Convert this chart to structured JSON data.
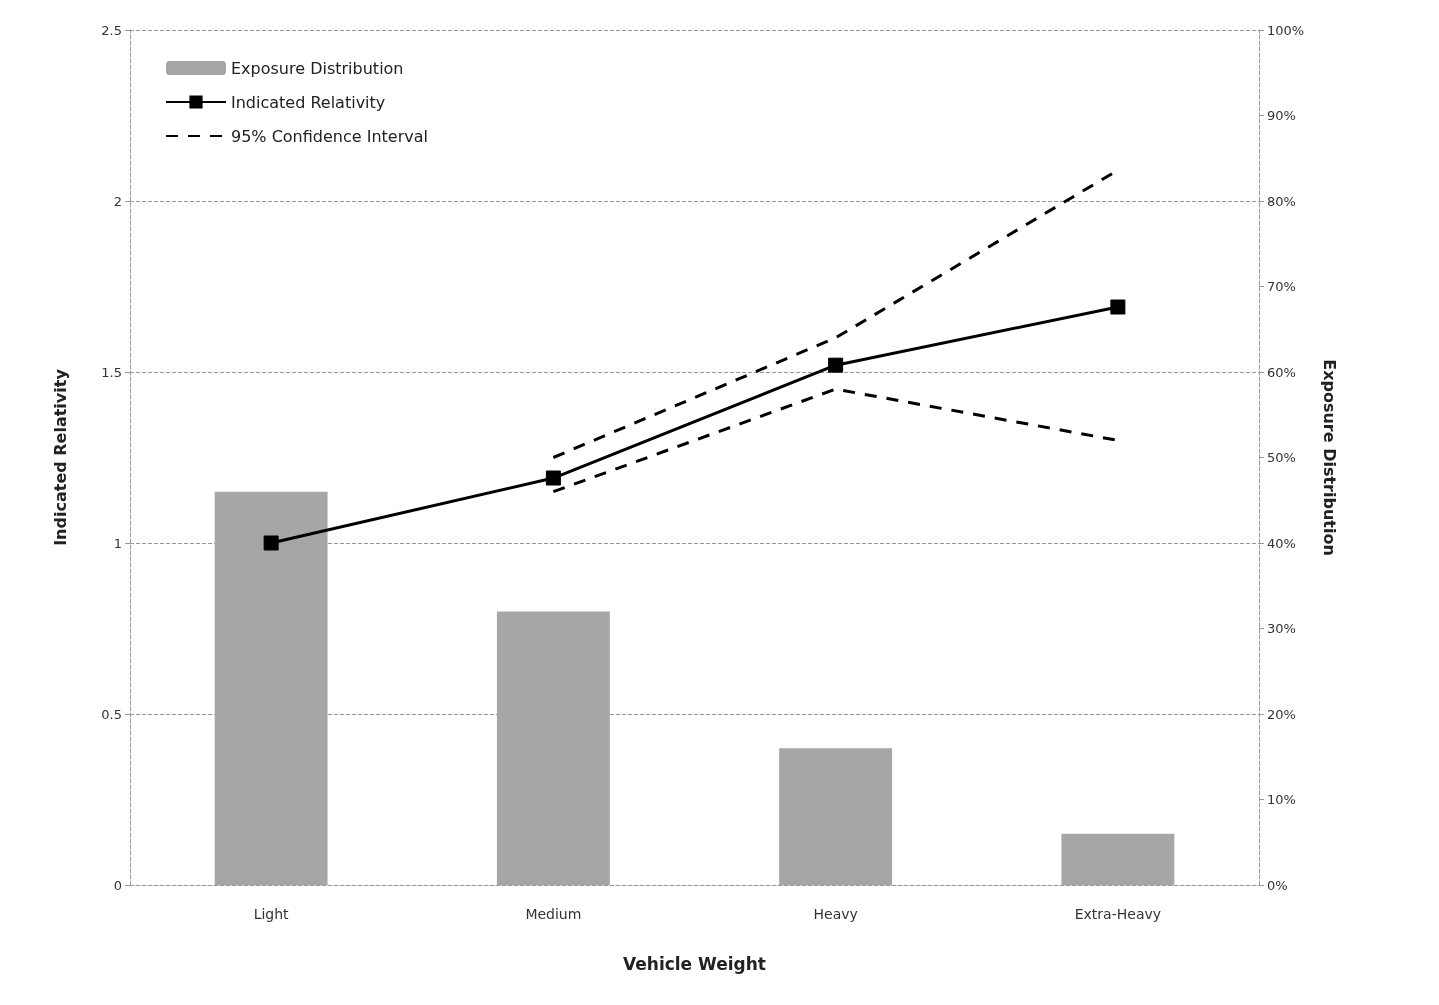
{
  "chart_data": {
    "type": "bar",
    "xlabel": "Vehicle Weight",
    "ylabel": "Indicated Relativity",
    "y2label": "Exposure Distribution",
    "categories": [
      "Light",
      "Medium",
      "Heavy",
      "Extra-Heavy"
    ],
    "series": [
      {
        "name": "Exposure Distribution",
        "axis": "y2",
        "color": "#a6a6a6",
        "values": [
          46,
          32,
          16,
          6
        ]
      },
      {
        "name": "Indicated Relativity",
        "type": "line",
        "color": "#000000",
        "marker": "square",
        "line_style": "solid",
        "values": [
          1.0,
          1.19,
          1.52,
          1.69
        ]
      },
      {
        "name": "95% Confidence Interval",
        "type": "line",
        "color": "#000000",
        "marker": "none",
        "line_style": "dashed",
        "values": [
          null,
          1.25,
          1.6,
          2.09
        ]
      },
      {
        "type": "line",
        "color": "#000000",
        "marker": "none",
        "line_style": "dashed",
        "values": [
          null,
          1.15,
          1.45,
          1.3
        ]
      }
    ],
    "ylim": [
      0,
      2.5
    ],
    "yticks": [
      0,
      0.5,
      1,
      1.5,
      2,
      2.5
    ],
    "y2lim": [
      0,
      100
    ],
    "y2ticks": [
      {
        "value": 0,
        "label": "0%"
      },
      {
        "value": 10,
        "label": "10%"
      },
      {
        "value": 20,
        "label": "20%"
      },
      {
        "value": 30,
        "label": "30%"
      },
      {
        "value": 40,
        "label": "40%"
      },
      {
        "value": 50,
        "label": "50%"
      },
      {
        "value": 60,
        "label": "60%"
      },
      {
        "value": 70,
        "label": "70%"
      },
      {
        "value": 80,
        "label": "80%"
      },
      {
        "value": 90,
        "label": "90%"
      },
      {
        "value": 100,
        "label": "100%"
      }
    ],
    "grid": "y",
    "legend": "top left"
  }
}
